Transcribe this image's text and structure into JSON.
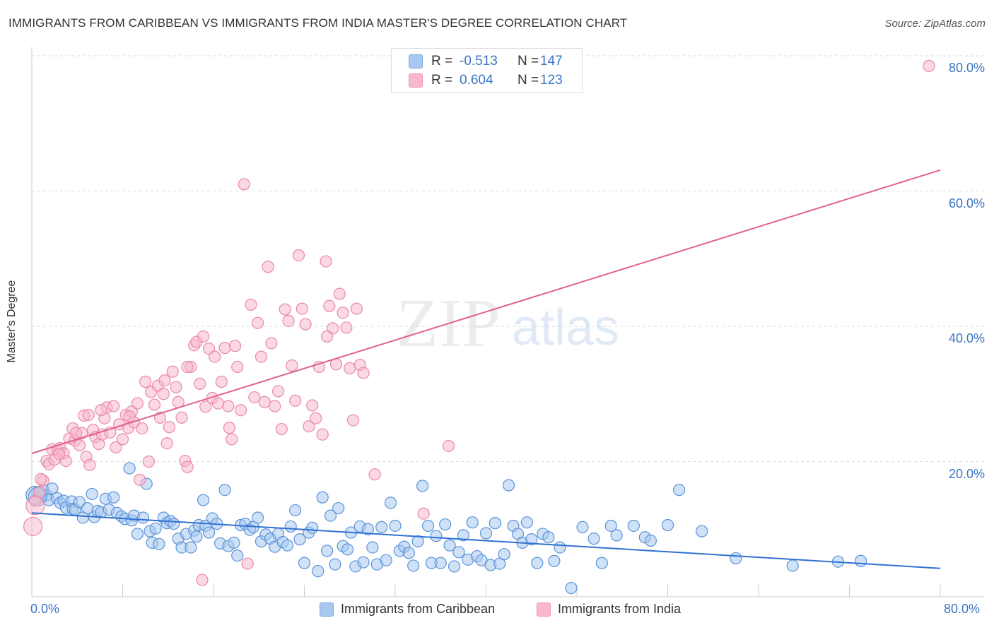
{
  "title": "IMMIGRANTS FROM CARIBBEAN VS IMMIGRANTS FROM INDIA MASTER'S DEGREE CORRELATION CHART",
  "source": "Source: ZipAtlas.com",
  "watermark": {
    "zip": "ZIP",
    "atlas": "atlas"
  },
  "legend_top": {
    "rows": [
      {
        "r_label": "R =",
        "r_value": "-0.513",
        "n_label": "N =",
        "n_value": "147",
        "color": "#a8c8f0"
      },
      {
        "r_label": "R =",
        "r_value": "0.604",
        "n_label": "N =",
        "n_value": "123",
        "color": "#f8b8cc"
      }
    ]
  },
  "legend_bottom": [
    {
      "label": "Immigrants from Caribbean",
      "color": "#a8c8f0"
    },
    {
      "label": "Immigrants from India",
      "color": "#f8b8cc"
    }
  ],
  "colors": {
    "caribbean_fill": "#a8c8f0",
    "caribbean_stroke": "#5b93d8",
    "caribbean_line": "#2f72d2",
    "india_fill": "#f8b8cc",
    "india_stroke": "#e88aa6",
    "india_line": "#e0628c",
    "tick_text": "#3a75c4",
    "grid": "#dddddd"
  },
  "chart_data": {
    "type": "scatter",
    "title": "IMMIGRANTS FROM CARIBBEAN VS IMMIGRANTS FROM INDIA MASTER'S DEGREE CORRELATION CHART",
    "xlabel": "",
    "ylabel": "Master's Degree",
    "xlim": [
      0,
      80
    ],
    "ylim": [
      0,
      80
    ],
    "x_tick_labels": [
      "0.0%",
      "80.0%"
    ],
    "y_tick_labels": [
      "20.0%",
      "40.0%",
      "60.0%",
      "80.0%"
    ],
    "y_ticks": [
      20,
      40,
      60,
      80
    ],
    "grid": true,
    "legend_position": "top-center",
    "series": [
      {
        "name": "Immigrants from Caribbean",
        "r": -0.513,
        "n": 147,
        "trend": {
          "x": [
            0,
            80
          ],
          "y": [
            12.4,
            4.2
          ]
        },
        "points": [
          [
            0.5,
            15.5
          ],
          [
            0.8,
            14.8
          ],
          [
            1.0,
            15.8
          ],
          [
            1.3,
            15.0
          ],
          [
            1.5,
            14.3
          ],
          [
            1.8,
            16.0
          ],
          [
            2.2,
            14.6
          ],
          [
            2.5,
            13.9
          ],
          [
            2.8,
            14.2
          ],
          [
            3.0,
            13.2
          ],
          [
            3.5,
            14.1
          ],
          [
            3.6,
            13.0
          ],
          [
            3.8,
            12.9
          ],
          [
            4.2,
            14.0
          ],
          [
            4.5,
            11.7
          ],
          [
            4.9,
            13.1
          ],
          [
            5.3,
            15.2
          ],
          [
            5.5,
            11.8
          ],
          [
            5.8,
            12.7
          ],
          [
            6.1,
            12.5
          ],
          [
            6.5,
            14.5
          ],
          [
            6.8,
            12.9
          ],
          [
            7.2,
            14.7
          ],
          [
            7.5,
            12.4
          ],
          [
            7.9,
            11.9
          ],
          [
            8.2,
            11.5
          ],
          [
            8.6,
            19.0
          ],
          [
            8.8,
            11.3
          ],
          [
            9.0,
            12.0
          ],
          [
            9.3,
            9.3
          ],
          [
            9.8,
            11.7
          ],
          [
            10.1,
            16.7
          ],
          [
            10.4,
            9.7
          ],
          [
            10.6,
            8.0
          ],
          [
            10.9,
            10.1
          ],
          [
            11.2,
            7.8
          ],
          [
            11.6,
            11.7
          ],
          [
            11.9,
            10.9
          ],
          [
            12.2,
            11.2
          ],
          [
            12.5,
            10.8
          ],
          [
            12.9,
            8.6
          ],
          [
            13.2,
            7.3
          ],
          [
            13.6,
            9.3
          ],
          [
            14.0,
            7.3
          ],
          [
            14.3,
            9.8
          ],
          [
            14.5,
            8.9
          ],
          [
            14.7,
            10.6
          ],
          [
            15.1,
            14.3
          ],
          [
            15.3,
            10.5
          ],
          [
            15.6,
            9.5
          ],
          [
            15.9,
            11.6
          ],
          [
            16.3,
            10.8
          ],
          [
            16.6,
            7.9
          ],
          [
            17.0,
            15.8
          ],
          [
            17.3,
            7.5
          ],
          [
            17.8,
            8.0
          ],
          [
            18.1,
            6.1
          ],
          [
            18.4,
            10.6
          ],
          [
            18.8,
            10.8
          ],
          [
            19.2,
            9.9
          ],
          [
            19.5,
            10.3
          ],
          [
            19.9,
            11.7
          ],
          [
            20.2,
            8.2
          ],
          [
            20.6,
            9.2
          ],
          [
            21.0,
            8.6
          ],
          [
            21.4,
            7.4
          ],
          [
            21.7,
            9.3
          ],
          [
            22.1,
            8.1
          ],
          [
            22.5,
            7.6
          ],
          [
            22.8,
            10.4
          ],
          [
            23.2,
            12.8
          ],
          [
            23.6,
            8.5
          ],
          [
            24.0,
            5.0
          ],
          [
            24.4,
            9.5
          ],
          [
            24.7,
            10.2
          ],
          [
            25.2,
            3.8
          ],
          [
            25.6,
            14.7
          ],
          [
            26.0,
            6.8
          ],
          [
            26.3,
            12.0
          ],
          [
            26.7,
            4.8
          ],
          [
            27.0,
            13.1
          ],
          [
            27.4,
            7.5
          ],
          [
            27.8,
            7.0
          ],
          [
            28.1,
            9.5
          ],
          [
            28.5,
            4.5
          ],
          [
            28.9,
            10.4
          ],
          [
            29.2,
            5.1
          ],
          [
            29.6,
            10.0
          ],
          [
            30.0,
            7.3
          ],
          [
            30.4,
            4.8
          ],
          [
            30.8,
            10.3
          ],
          [
            31.2,
            5.4
          ],
          [
            31.6,
            13.9
          ],
          [
            32.0,
            10.5
          ],
          [
            32.4,
            6.8
          ],
          [
            32.8,
            7.4
          ],
          [
            33.2,
            6.5
          ],
          [
            33.6,
            4.6
          ],
          [
            34.0,
            8.2
          ],
          [
            34.4,
            16.4
          ],
          [
            34.9,
            10.5
          ],
          [
            35.2,
            5.0
          ],
          [
            35.6,
            9.0
          ],
          [
            36.0,
            5.0
          ],
          [
            36.4,
            10.7
          ],
          [
            36.8,
            7.6
          ],
          [
            37.2,
            4.5
          ],
          [
            37.6,
            6.6
          ],
          [
            38.0,
            9.1
          ],
          [
            38.4,
            5.5
          ],
          [
            38.8,
            11.0
          ],
          [
            39.2,
            6.0
          ],
          [
            39.6,
            5.4
          ],
          [
            40.0,
            9.4
          ],
          [
            40.4,
            4.7
          ],
          [
            40.8,
            10.9
          ],
          [
            41.2,
            4.9
          ],
          [
            41.6,
            6.3
          ],
          [
            42.0,
            16.5
          ],
          [
            42.4,
            10.5
          ],
          [
            42.8,
            9.3
          ],
          [
            43.2,
            8.0
          ],
          [
            43.6,
            11.0
          ],
          [
            44.0,
            8.5
          ],
          [
            44.5,
            5.0
          ],
          [
            45.0,
            9.3
          ],
          [
            45.5,
            8.8
          ],
          [
            46.0,
            5.3
          ],
          [
            46.5,
            7.3
          ],
          [
            47.5,
            1.3
          ],
          [
            48.5,
            10.3
          ],
          [
            49.5,
            8.6
          ],
          [
            50.2,
            5.0
          ],
          [
            51.0,
            10.5
          ],
          [
            51.5,
            9.1
          ],
          [
            53.0,
            10.5
          ],
          [
            54.0,
            8.8
          ],
          [
            54.5,
            8.3
          ],
          [
            56.0,
            10.6
          ],
          [
            57.0,
            15.8
          ],
          [
            59.0,
            9.7
          ],
          [
            62.0,
            5.7
          ],
          [
            67.0,
            4.6
          ],
          [
            71.0,
            5.2
          ],
          [
            73.0,
            5.3
          ]
        ],
        "big_points": [
          [
            0.3,
            15.0
          ],
          [
            0.5,
            14.8
          ]
        ]
      },
      {
        "name": "Immigrants from India",
        "r": 0.604,
        "n": 123,
        "trend": {
          "x": [
            0,
            80
          ],
          "y": [
            21.2,
            63.1
          ]
        },
        "points": [
          [
            0.3,
            14.2
          ],
          [
            0.7,
            15.5
          ],
          [
            1.0,
            17.2
          ],
          [
            1.3,
            20.1
          ],
          [
            1.5,
            19.6
          ],
          [
            1.8,
            21.8
          ],
          [
            2.0,
            20.3
          ],
          [
            2.3,
            21.6
          ],
          [
            2.5,
            22.0
          ],
          [
            2.8,
            21.2
          ],
          [
            3.0,
            20.1
          ],
          [
            3.3,
            23.4
          ],
          [
            3.6,
            24.9
          ],
          [
            3.8,
            23.1
          ],
          [
            4.2,
            22.4
          ],
          [
            4.4,
            24.2
          ],
          [
            4.6,
            26.8
          ],
          [
            4.8,
            20.7
          ],
          [
            5.1,
            19.5
          ],
          [
            5.4,
            24.7
          ],
          [
            5.6,
            23.6
          ],
          [
            5.9,
            22.6
          ],
          [
            6.2,
            24.0
          ],
          [
            6.4,
            26.4
          ],
          [
            6.6,
            28.0
          ],
          [
            6.9,
            24.3
          ],
          [
            7.2,
            28.2
          ],
          [
            7.4,
            22.1
          ],
          [
            7.7,
            25.5
          ],
          [
            8.0,
            23.3
          ],
          [
            8.3,
            26.9
          ],
          [
            8.5,
            25.0
          ],
          [
            8.8,
            27.4
          ],
          [
            9.0,
            25.8
          ],
          [
            9.3,
            28.6
          ],
          [
            9.5,
            17.3
          ],
          [
            9.7,
            24.9
          ],
          [
            10.0,
            31.8
          ],
          [
            10.3,
            20.0
          ],
          [
            10.5,
            30.3
          ],
          [
            10.8,
            28.4
          ],
          [
            11.1,
            31.2
          ],
          [
            11.3,
            26.5
          ],
          [
            11.6,
            30.0
          ],
          [
            11.9,
            22.7
          ],
          [
            12.1,
            25.1
          ],
          [
            12.4,
            33.3
          ],
          [
            12.7,
            31.0
          ],
          [
            12.9,
            28.8
          ],
          [
            13.2,
            26.5
          ],
          [
            13.5,
            20.1
          ],
          [
            13.7,
            19.2
          ],
          [
            14.0,
            34.0
          ],
          [
            14.3,
            37.2
          ],
          [
            14.5,
            37.7
          ],
          [
            14.8,
            31.5
          ],
          [
            15.1,
            38.5
          ],
          [
            15.3,
            28.1
          ],
          [
            15.6,
            36.7
          ],
          [
            15.9,
            29.4
          ],
          [
            16.1,
            35.5
          ],
          [
            16.4,
            28.6
          ],
          [
            16.7,
            31.8
          ],
          [
            17.0,
            36.8
          ],
          [
            17.3,
            28.2
          ],
          [
            17.6,
            23.3
          ],
          [
            17.9,
            37.1
          ],
          [
            18.1,
            34.0
          ],
          [
            18.4,
            27.6
          ],
          [
            18.7,
            61.0
          ],
          [
            19.0,
            4.9
          ],
          [
            19.3,
            43.2
          ],
          [
            19.6,
            29.5
          ],
          [
            19.9,
            40.5
          ],
          [
            20.2,
            35.5
          ],
          [
            20.5,
            28.8
          ],
          [
            20.8,
            48.8
          ],
          [
            21.1,
            37.5
          ],
          [
            21.4,
            28.2
          ],
          [
            21.7,
            30.4
          ],
          [
            22.0,
            24.8
          ],
          [
            22.3,
            42.5
          ],
          [
            22.6,
            40.8
          ],
          [
            22.9,
            34.2
          ],
          [
            23.2,
            29.0
          ],
          [
            23.5,
            50.5
          ],
          [
            23.8,
            42.6
          ],
          [
            24.1,
            40.3
          ],
          [
            24.4,
            25.2
          ],
          [
            24.7,
            28.3
          ],
          [
            25.0,
            26.4
          ],
          [
            25.3,
            34.0
          ],
          [
            25.6,
            24.0
          ],
          [
            25.9,
            49.6
          ],
          [
            26.2,
            43.0
          ],
          [
            26.5,
            39.7
          ],
          [
            26.8,
            34.4
          ],
          [
            27.1,
            44.8
          ],
          [
            27.4,
            42.0
          ],
          [
            27.7,
            39.8
          ],
          [
            28.0,
            33.8
          ],
          [
            28.3,
            26.1
          ],
          [
            28.6,
            42.6
          ],
          [
            28.9,
            34.3
          ],
          [
            29.2,
            33.1
          ],
          [
            30.2,
            18.1
          ],
          [
            34.5,
            12.3
          ],
          [
            36.7,
            22.3
          ],
          [
            79.0,
            78.5
          ],
          [
            0.8,
            17.4
          ],
          [
            2.4,
            21.1
          ],
          [
            6.1,
            27.6
          ],
          [
            8.6,
            26.7
          ],
          [
            13.7,
            34.0
          ],
          [
            17.4,
            25.0
          ],
          [
            26.0,
            38.5
          ],
          [
            15.0,
            2.5
          ],
          [
            5.0,
            26.9
          ],
          [
            3.9,
            24.2
          ],
          [
            11.7,
            32.0
          ]
        ],
        "big_points": [
          [
            0.1,
            10.4
          ],
          [
            0.3,
            13.5
          ]
        ]
      }
    ]
  }
}
